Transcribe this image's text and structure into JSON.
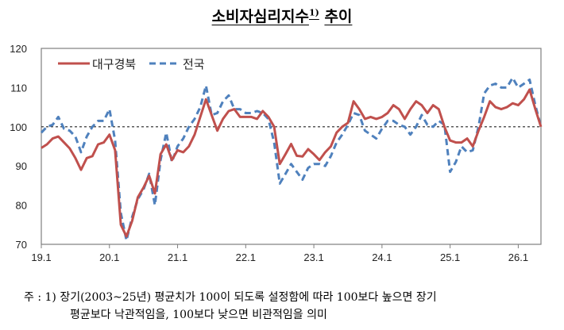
{
  "title": {
    "text": "소비자심리지수",
    "sup": "1)",
    "suffix": "추이"
  },
  "footnote": {
    "line1": "주 : 1) 장기(2003~25년) 평균치가 100이 되도록 설정함에 따라 100보다 높으면 장기",
    "line2": "평균보다 낙관적임을, 100보다 낮으면 비관적임을 의미"
  },
  "chart_data": {
    "type": "line",
    "title": "소비자심리지수 추이",
    "xlabel": "",
    "ylabel": "",
    "x_range": [
      "19.1",
      "26.5"
    ],
    "x_frequency": "monthly",
    "x_ticks": [
      "19.1",
      "20.1",
      "21.1",
      "22.1",
      "23.1",
      "24.1",
      "25.1",
      "26.1"
    ],
    "ylim": [
      70,
      120
    ],
    "y_ticks": [
      70,
      80,
      90,
      100,
      110,
      120
    ],
    "reference_line": 100,
    "grid": false,
    "legend": "top-left",
    "series": [
      {
        "name": "대구경북",
        "color": "#C0504D",
        "style": "solid",
        "values": [
          94.6,
          95.5,
          97,
          97.5,
          96,
          94.5,
          92,
          89,
          92,
          92.5,
          95.5,
          96,
          98,
          94,
          75,
          72,
          76,
          82,
          84.5,
          87.5,
          83,
          93,
          95.5,
          91.5,
          94,
          93.5,
          95,
          98,
          102.5,
          107,
          103,
          99,
          102,
          104,
          104.5,
          102.5,
          102.5,
          102.5,
          102,
          104,
          102.5,
          100,
          90.5,
          93,
          95.6,
          92.6,
          92.4,
          94.3,
          93,
          91.5,
          93.5,
          95,
          98.5,
          100,
          101,
          106.5,
          104.5,
          102,
          102.5,
          102,
          102.5,
          103.5,
          105.5,
          104.5,
          102,
          104.5,
          106.5,
          105.5,
          103.5,
          105.5,
          104.5,
          100,
          96.5,
          96,
          96,
          97,
          95,
          99,
          102.5,
          106.5,
          105,
          104.5,
          105,
          106,
          105.5,
          107,
          109.5,
          104.5,
          100
        ]
      },
      {
        "name": "전국",
        "color": "#4F81BD",
        "style": "dashed",
        "values": [
          98.5,
          100,
          100.5,
          102.5,
          99.5,
          99,
          97.5,
          93.5,
          97.5,
          100,
          101.5,
          101.5,
          104.5,
          96.5,
          78,
          71,
          77,
          81.5,
          84,
          88,
          80,
          91.5,
          98.5,
          91,
          95,
          97,
          100,
          102,
          105,
          110.5,
          103,
          103.5,
          106.5,
          108,
          104.5,
          104.5,
          103.5,
          103.5,
          104,
          103.5,
          102,
          96,
          85.5,
          88,
          90.5,
          88.5,
          86.5,
          89.5,
          90.5,
          90.5,
          90,
          92.5,
          96,
          98,
          100.5,
          103.5,
          103,
          99,
          98,
          97,
          99.5,
          101.5,
          101.5,
          100.5,
          100,
          98,
          100,
          103,
          100.5,
          100,
          101.5,
          100.5,
          88.5,
          91,
          95,
          93.5,
          94,
          100,
          108.5,
          110.5,
          111,
          110,
          110,
          112.5,
          110,
          111,
          112,
          105.5,
          100
        ]
      }
    ]
  }
}
